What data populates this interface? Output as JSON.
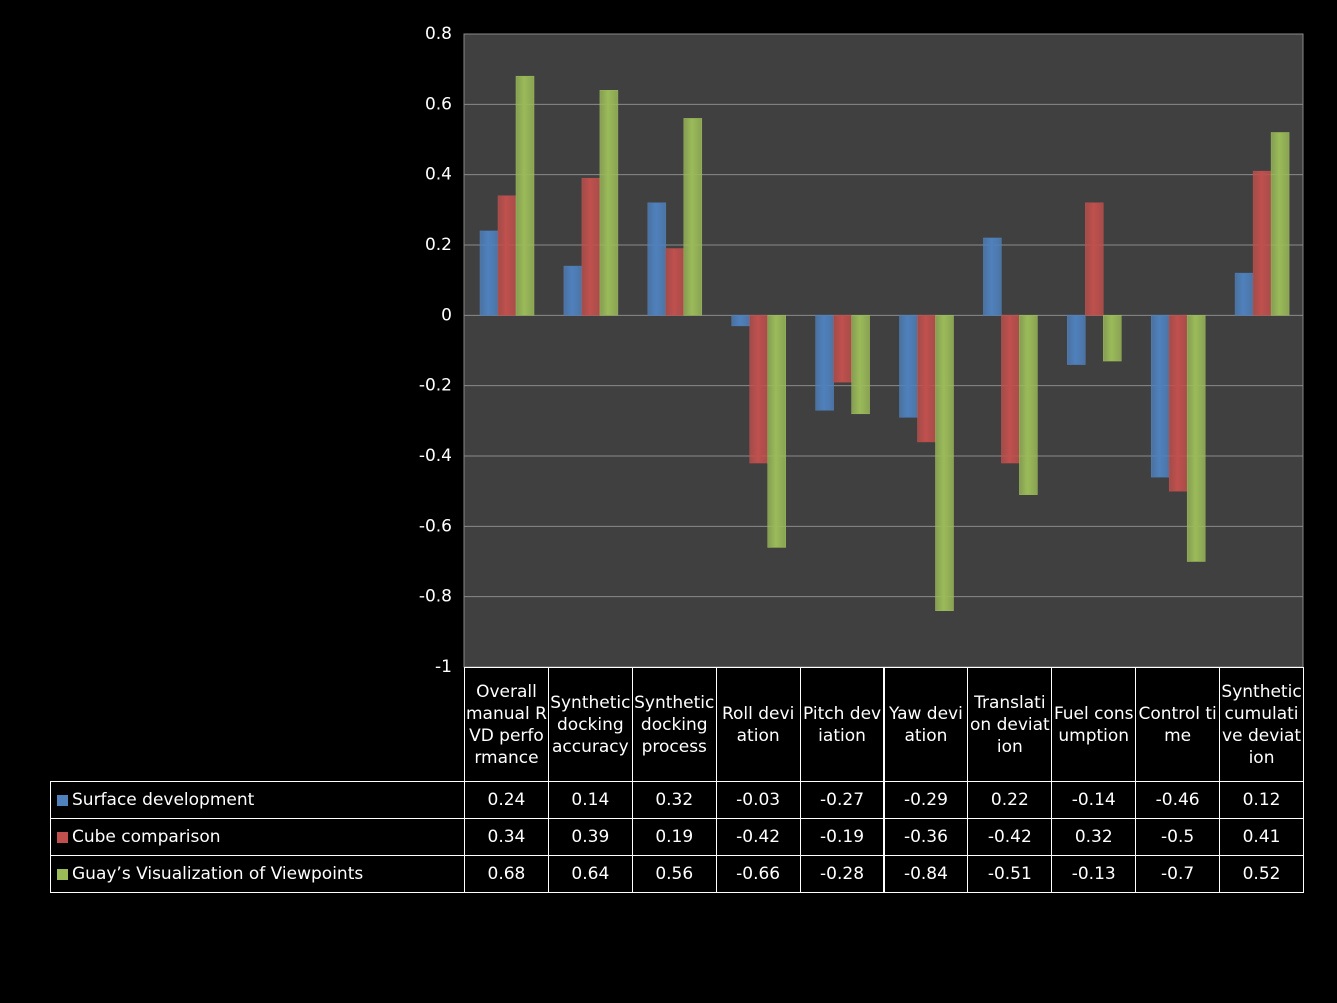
{
  "chart_data": {
    "type": "bar",
    "categories": [
      "Overall manual RVD performance",
      "Synthetic docking accuracy",
      "Synthetic docking process",
      "Roll deviation",
      "Pitch deviation",
      "Yaw deviation",
      "Translation deviation",
      "Fuel consumption",
      "Control time",
      "Synthetic cumulative deviation"
    ],
    "series": [
      {
        "name": "Surface development",
        "color": "#4f81bd",
        "values": [
          0.24,
          0.14,
          0.32,
          -0.03,
          -0.27,
          -0.29,
          0.22,
          -0.14,
          -0.46,
          0.12
        ]
      },
      {
        "name": "Cube comparison",
        "color": "#c0504d",
        "values": [
          0.34,
          0.39,
          0.19,
          -0.42,
          -0.19,
          -0.36,
          -0.42,
          0.32,
          -0.5,
          0.41
        ]
      },
      {
        "name": "Guay’s Visualization of Viewpoints",
        "color": "#9bbb59",
        "values": [
          0.68,
          0.64,
          0.56,
          -0.66,
          -0.28,
          -0.84,
          -0.51,
          -0.13,
          -0.7,
          0.52
        ]
      }
    ],
    "ylim": [
      -1,
      0.8
    ],
    "yticks": [
      0.8,
      0.6,
      0.4,
      0.2,
      0,
      -0.2,
      -0.4,
      -0.6,
      -0.8,
      -1
    ],
    "grid": true
  }
}
